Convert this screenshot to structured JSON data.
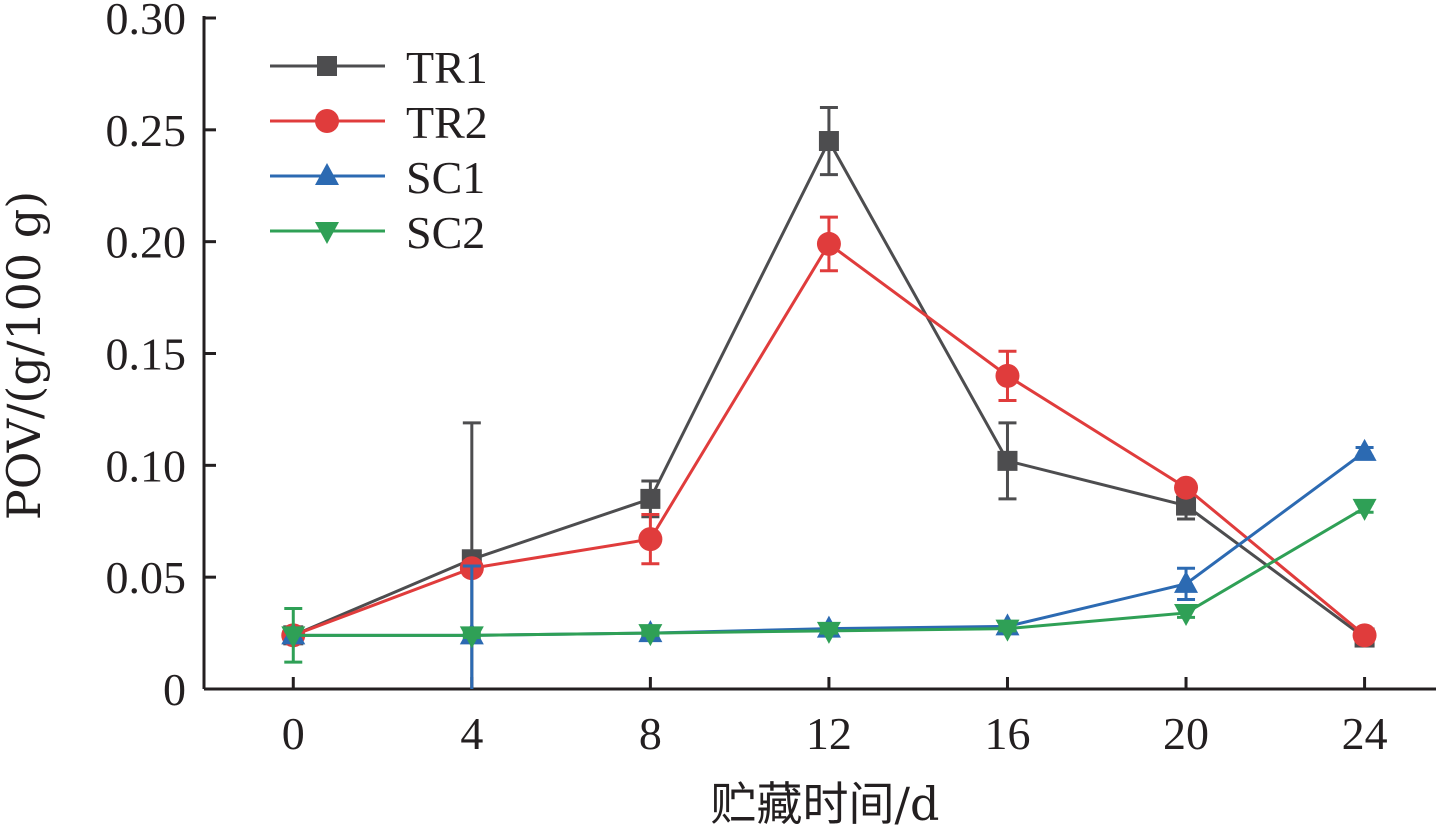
{
  "chart_data": {
    "type": "line",
    "xlabel": "贮藏时间/d",
    "ylabel": "POV/(g/100 g)",
    "x": [
      0,
      4,
      8,
      12,
      16,
      20,
      24
    ],
    "x_tick_labels": [
      "0",
      "4",
      "8",
      "12",
      "16",
      "20",
      "24"
    ],
    "y_tick_labels": [
      "0",
      "0.05",
      "0.10",
      "0.15",
      "0.20",
      "0.25",
      "0.30"
    ],
    "xlim": [
      -2,
      25.6
    ],
    "ylim": [
      0,
      0.3
    ],
    "y_ticks": [
      0,
      0.05,
      0.1,
      0.15,
      0.2,
      0.25,
      0.3
    ],
    "grid": false,
    "legend_position": "top-left",
    "series": [
      {
        "name": "TR1",
        "color": "#4d4d4f",
        "marker": "square",
        "values": [
          0.024,
          0.058,
          0.085,
          0.245,
          0.102,
          0.082,
          0.023
        ],
        "errors": [
          0.002,
          0.061,
          0.008,
          0.015,
          0.017,
          0.006,
          0.002
        ]
      },
      {
        "name": "TR2",
        "color": "#e03c3c",
        "marker": "circle",
        "values": [
          0.024,
          0.054,
          0.067,
          0.199,
          0.14,
          0.09,
          0.024
        ],
        "errors": [
          0.002,
          0.003,
          0.011,
          0.012,
          0.011,
          0.002,
          0.002
        ]
      },
      {
        "name": "SC1",
        "color": "#2c6ab2",
        "marker": "triangle-up",
        "values": [
          0.024,
          0.024,
          0.025,
          0.027,
          0.028,
          0.047,
          0.106
        ],
        "errors": [
          0.002,
          0.031,
          0.001,
          0.001,
          0.001,
          0.007,
          0.002
        ]
      },
      {
        "name": "SC2",
        "color": "#2fa056",
        "marker": "triangle-down",
        "values": [
          0.024,
          0.024,
          0.025,
          0.026,
          0.027,
          0.034,
          0.081
        ],
        "errors": [
          0.012,
          0.001,
          0.001,
          0.001,
          0.001,
          0.002,
          0.002
        ]
      }
    ]
  }
}
